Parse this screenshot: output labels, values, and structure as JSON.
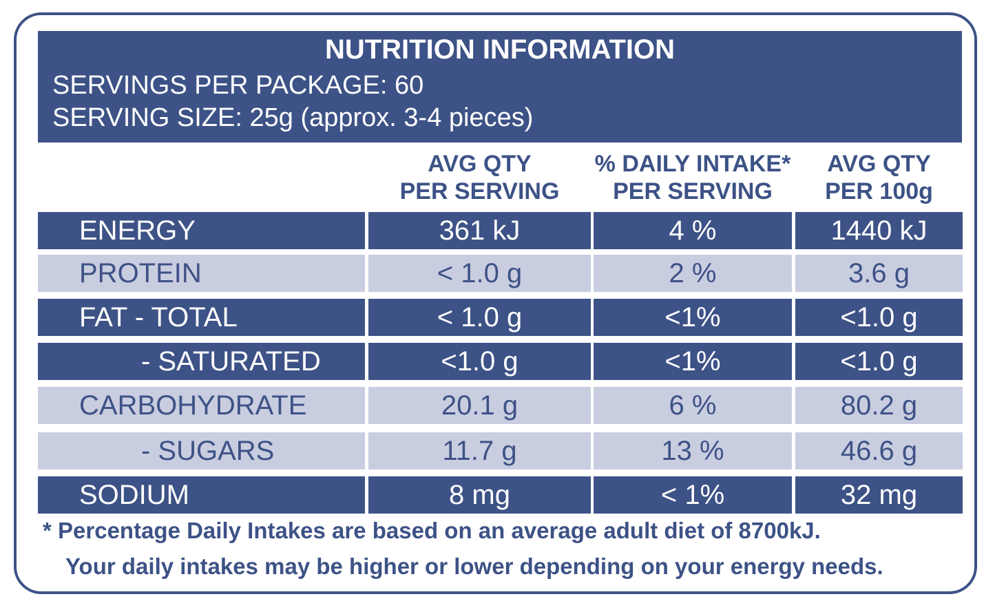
{
  "header": {
    "title": "NUTRITION INFORMATION",
    "servings": "SERVINGS PER PACKAGE: 60",
    "serving_size": "SERVING SIZE: 25g (approx. 3-4 pieces)"
  },
  "table": {
    "columns": [
      [
        "AVG QTY",
        "PER SERVING"
      ],
      [
        "% DAILY INTAKE*",
        "PER SERVING"
      ],
      [
        "AVG QTY",
        "PER 100g"
      ]
    ],
    "rows": [
      [
        "ENERGY",
        "361 kJ",
        "4 %",
        "1440 kJ"
      ],
      [
        "PROTEIN",
        "< 1.0 g",
        "2 %",
        "3.6 g"
      ],
      [
        "FAT - TOTAL",
        "< 1.0 g",
        "<1%",
        "<1.0 g"
      ],
      [
        "- SATURATED",
        "<1.0 g",
        "<1%",
        "<1.0 g"
      ],
      [
        "CARBOHYDRATE",
        "20.1 g",
        "6 %",
        "80.2 g"
      ],
      [
        "- SUGARS",
        "11.7 g",
        "13 %",
        "46.6 g"
      ],
      [
        "SODIUM",
        "8 mg",
        "< 1%",
        "32 mg"
      ]
    ]
  },
  "footnote": [
    "* Percentage Daily Intakes are based on an average adult diet of 8700kJ.",
    "Your daily intakes may be higher or lower depending on your energy needs."
  ]
}
